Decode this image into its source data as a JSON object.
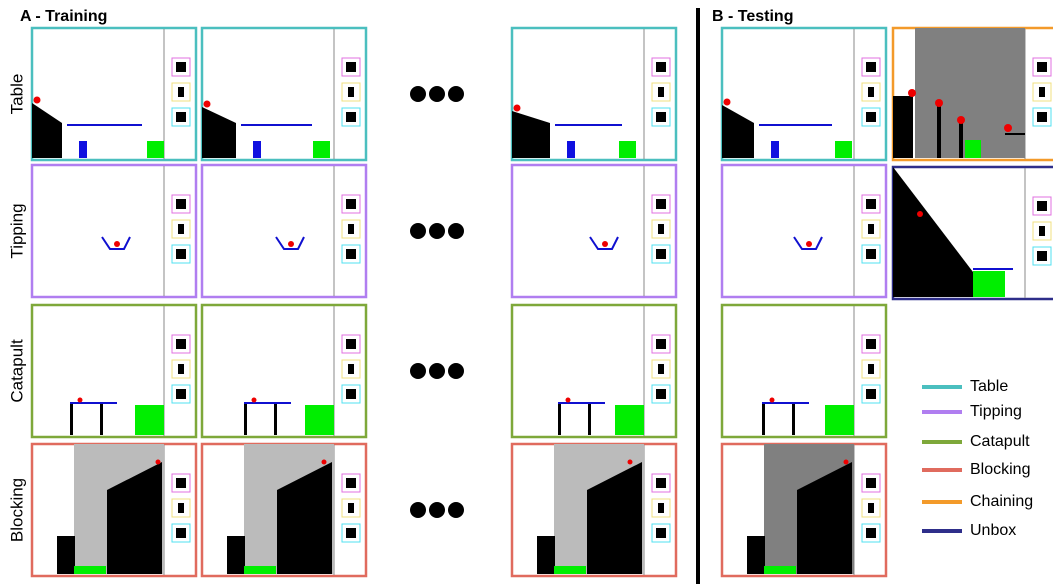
{
  "sections": [
    {
      "title": "A - Training"
    },
    {
      "title": "B - Testing"
    }
  ],
  "rows": [
    "Table",
    "Tipping",
    "Catapult",
    "Blocking"
  ],
  "legend": [
    {
      "label": "Table",
      "color": "#4bbfbf"
    },
    {
      "label": "Tipping",
      "color": "#b07ef0"
    },
    {
      "label": "Catapult",
      "color": "#7ea83a"
    },
    {
      "label": "Blocking",
      "color": "#e06b5e"
    },
    {
      "label": "Chaining",
      "color": "#f39a2a"
    },
    {
      "label": "Unbox",
      "color": "#2e2e8a"
    }
  ]
}
